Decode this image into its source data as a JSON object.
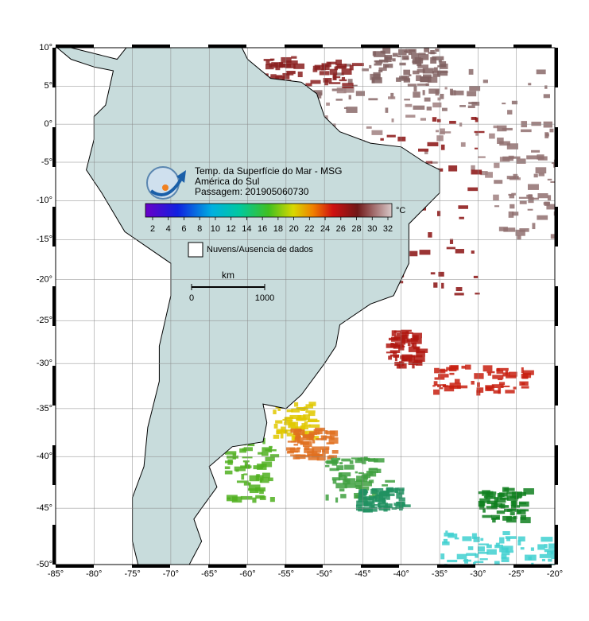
{
  "title": {
    "line1": "Temp. da Superfície do Mar - MSG",
    "line2": "América do Sul",
    "line3": "Passagem: 201905060730"
  },
  "colorbar": {
    "unit": "°C",
    "ticks": [
      2,
      4,
      6,
      8,
      10,
      12,
      14,
      16,
      18,
      20,
      22,
      24,
      26,
      28,
      30,
      32
    ]
  },
  "legend": {
    "label": "Nuvens/Ausencia de dados"
  },
  "scale_bar": {
    "unit": "km",
    "ticks": [
      0,
      1000
    ]
  },
  "lat_ticks": [
    {
      "value": 10,
      "label": "10°"
    },
    {
      "value": 5,
      "label": "5°"
    },
    {
      "value": 0,
      "label": "0°"
    },
    {
      "value": -5,
      "label": "-5°"
    },
    {
      "value": -10,
      "label": "-10°"
    },
    {
      "value": -15,
      "label": "-15°"
    },
    {
      "value": -20,
      "label": "-20°"
    },
    {
      "value": -25,
      "label": "-25°"
    },
    {
      "value": -30,
      "label": "-30°"
    },
    {
      "value": -35,
      "label": "-35°"
    },
    {
      "value": -40,
      "label": "-40°"
    },
    {
      "value": -45,
      "label": "-45°"
    },
    {
      "value": -50,
      "label": "-50°"
    }
  ],
  "lon_ticks": [
    {
      "value": -85,
      "label": "-85°"
    },
    {
      "value": -80,
      "label": "-80°"
    },
    {
      "value": -75,
      "label": "-75°"
    },
    {
      "value": -70,
      "label": "-70°"
    },
    {
      "value": -65,
      "label": "-65°"
    },
    {
      "value": -60,
      "label": "-60°"
    },
    {
      "value": -55,
      "label": "-55°"
    },
    {
      "value": -50,
      "label": "-50°"
    },
    {
      "value": -45,
      "label": "-45°"
    },
    {
      "value": -40,
      "label": "-40°"
    },
    {
      "value": -35,
      "label": "-35°"
    },
    {
      "value": -30,
      "label": "-30°"
    },
    {
      "value": -25,
      "label": "-25°"
    },
    {
      "value": -20,
      "label": "-20°"
    }
  ]
}
